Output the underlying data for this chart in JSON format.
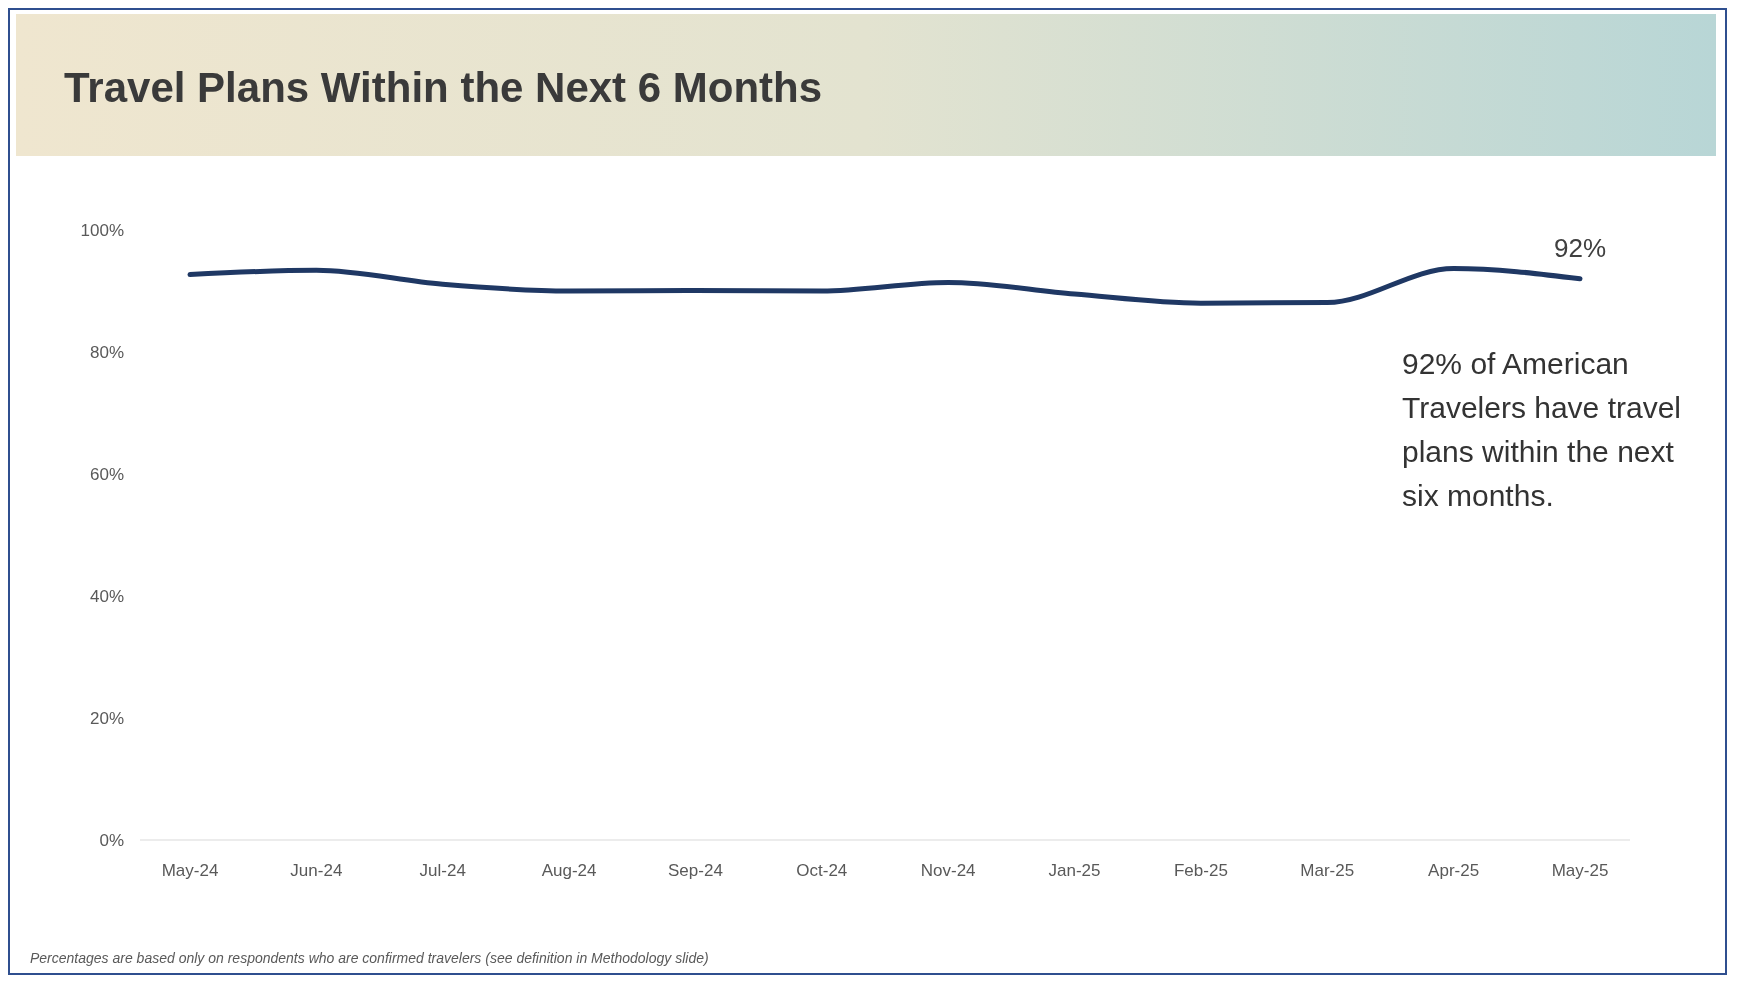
{
  "chart_data": {
    "type": "line",
    "title": "Travel Plans Within the Next 6 Months",
    "categories": [
      "May-24",
      "Jun-24",
      "Jul-24",
      "Aug-24",
      "Sep-24",
      "Oct-24",
      "Nov-24",
      "Jan-25",
      "Feb-25",
      "Mar-25",
      "Apr-25",
      "May-25"
    ],
    "series": [
      {
        "color": "#1f3864",
        "values": [
          92.7,
          93.4,
          91.1,
          90,
          90.1,
          90,
          91.4,
          89.5,
          88,
          88.1,
          93.7,
          92
        ],
        "value_labels": [
          null,
          null,
          null,
          null,
          null,
          null,
          null,
          null,
          null,
          null,
          null,
          "92%"
        ]
      }
    ],
    "ylim": [
      0,
      100
    ],
    "yticks": [
      {
        "value": 0,
        "label": "0%"
      },
      {
        "value": 20,
        "label": "20%"
      },
      {
        "value": 40,
        "label": "40%"
      },
      {
        "value": 60,
        "label": "60%"
      },
      {
        "value": 80,
        "label": "80%"
      },
      {
        "value": 100,
        "label": "100%"
      }
    ],
    "grid": false,
    "legend": false,
    "marker": "none",
    "line_style": "solid",
    "annotations": [
      "92% of American Travelers have travel plans within the next six months.",
      "Percentages are based only on respondents who are confirmed travelers (see definition in Methodology slide)"
    ]
  }
}
